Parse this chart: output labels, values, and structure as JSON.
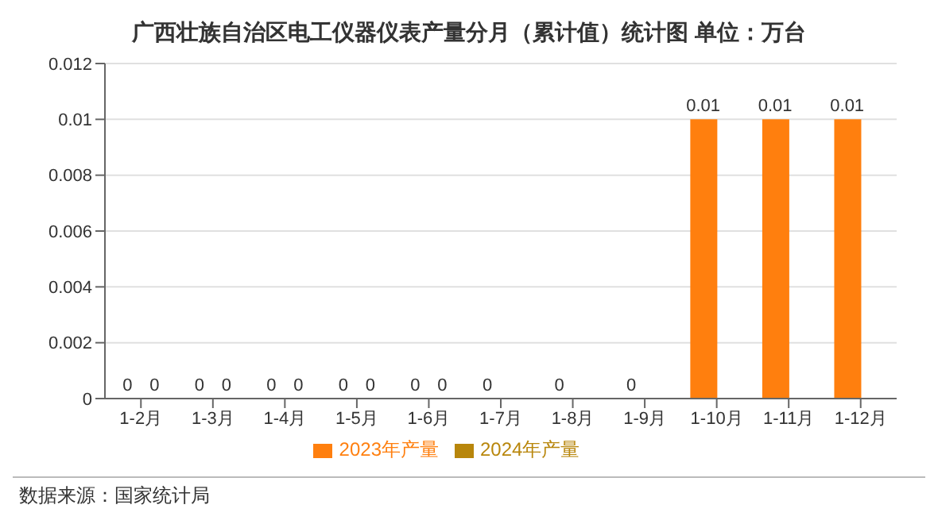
{
  "chart_data": {
    "type": "bar",
    "title": "广西壮族自治区电工仪器仪表产量分月（累计值）统计图 单位：万台",
    "categories": [
      "1-2月",
      "1-3月",
      "1-4月",
      "1-5月",
      "1-6月",
      "1-7月",
      "1-8月",
      "1-9月",
      "1-10月",
      "1-11月",
      "1-12月"
    ],
    "series": [
      {
        "name": "2023年产量",
        "color": "#ff7f0e",
        "values": [
          0,
          0,
          0,
          0,
          0,
          0,
          0,
          0,
          0.01,
          0.01,
          0.01
        ]
      },
      {
        "name": "2024年产量",
        "color": "#b8860b",
        "values": [
          0,
          0,
          0,
          0,
          0,
          null,
          null,
          null,
          null,
          null,
          null
        ]
      }
    ],
    "ylim": [
      0,
      0.012
    ],
    "yticks": [
      0,
      0.002,
      0.004,
      0.006,
      0.008,
      0.01,
      0.012
    ],
    "grid": "y",
    "legend": "bottom",
    "data_labels": true,
    "annotations": [
      "数据来源：国家统计局"
    ]
  }
}
